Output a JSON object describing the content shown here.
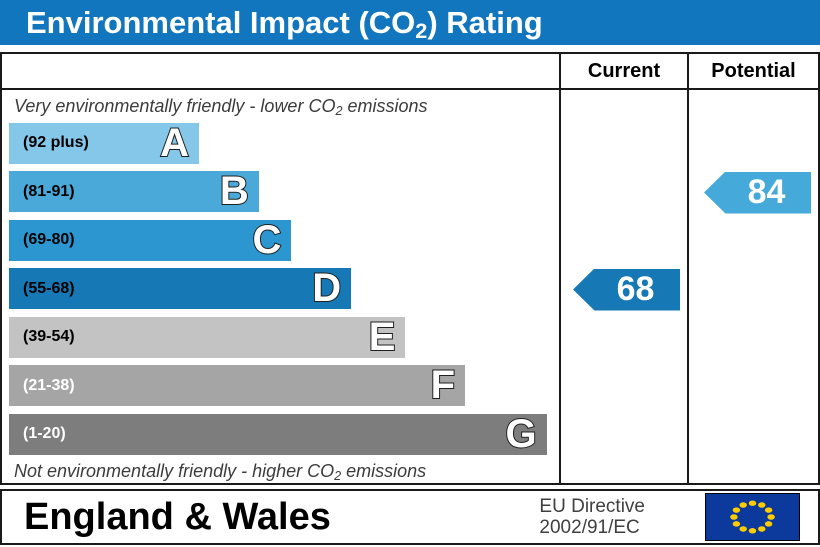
{
  "title": {
    "prefix": "Environmental Impact (CO",
    "sub": "2",
    "suffix": ") Rating"
  },
  "table": {
    "header": {
      "current": "Current",
      "potential": "Potential"
    },
    "top_note": {
      "prefix": "Very environmentally friendly - lower CO",
      "sub": "2",
      "suffix": " emissions"
    },
    "bottom_note": {
      "prefix": "Not environmentally friendly - higher CO",
      "sub": "2",
      "suffix": " emissions"
    }
  },
  "chart_data": {
    "type": "bar",
    "title": "Environmental Impact (CO2) Rating",
    "bands": [
      {
        "letter": "A",
        "range": "(92 plus)",
        "min": 92,
        "max": 100,
        "color": "#85c7e9",
        "text_color": "#000000",
        "width_pct": 35
      },
      {
        "letter": "B",
        "range": "(81-91)",
        "min": 81,
        "max": 91,
        "color": "#4aa9d8",
        "text_color": "#000000",
        "width_pct": 46
      },
      {
        "letter": "C",
        "range": "(69-80)",
        "min": 69,
        "max": 80,
        "color": "#2b96cf",
        "text_color": "#000000",
        "width_pct": 52
      },
      {
        "letter": "D",
        "range": "(55-68)",
        "min": 55,
        "max": 68,
        "color": "#1678b5",
        "text_color": "#000000",
        "width_pct": 63
      },
      {
        "letter": "E",
        "range": "(39-54)",
        "min": 39,
        "max": 54,
        "color": "#c3c3c3",
        "text_color": "#000000",
        "width_pct": 73
      },
      {
        "letter": "F",
        "range": "(21-38)",
        "min": 21,
        "max": 38,
        "color": "#a5a5a5",
        "text_color": "#ffffff",
        "width_pct": 84
      },
      {
        "letter": "G",
        "range": "(1-20)",
        "min": 1,
        "max": 20,
        "color": "#7d7d7d",
        "text_color": "#ffffff",
        "width_pct": 99
      }
    ],
    "current": {
      "value": 68,
      "band": "D",
      "band_index": 3,
      "color": "#1678b5"
    },
    "potential": {
      "value": 84,
      "band": "B",
      "band_index": 1,
      "color": "#45a9da"
    }
  },
  "footer": {
    "region": "England & Wales",
    "directive_line1": "EU Directive",
    "directive_line2": "2002/91/EC",
    "eu_flag": {
      "bg": "#0b3a9c",
      "star_color": "#ffcc00"
    }
  }
}
